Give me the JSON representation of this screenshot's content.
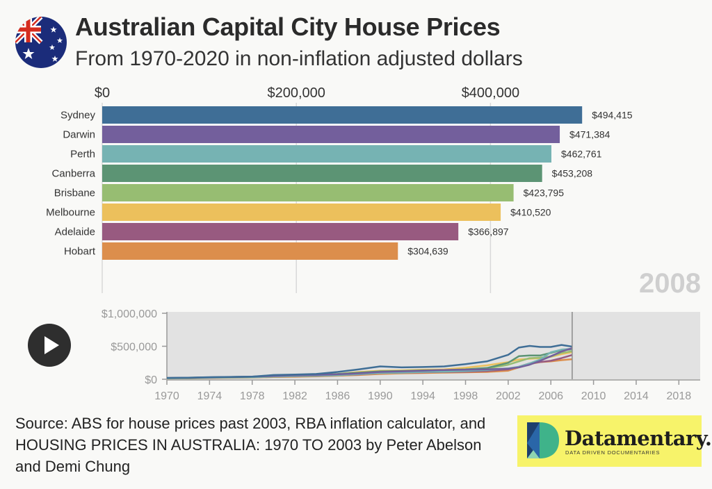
{
  "title": "Australian Capital City House Prices",
  "subtitle": "From 1970-2020 in non-inflation adjusted dollars",
  "current_year": "2008",
  "source": "Source: ABS for house prices past 2003, RBA inflation calculator, and HOUSING PRICES IN AUSTRALIA: 1970 TO 2003 by Peter Abelson and Demi Chung",
  "logo": {
    "name": "Datamentary.",
    "tagline": "DATA DRIVEN DOCUMENTARIES"
  },
  "icons": {
    "flag": "australian-flag-icon",
    "play": "play-icon"
  },
  "chart_data": [
    {
      "type": "bar",
      "orientation": "horizontal",
      "categories": [
        "Sydney",
        "Darwin",
        "Perth",
        "Canberra",
        "Brisbane",
        "Melbourne",
        "Adelaide",
        "Hobart"
      ],
      "values": [
        494415,
        471384,
        462761,
        453208,
        423795,
        410520,
        366897,
        304639
      ],
      "value_labels": [
        "$494,415",
        "$471,384",
        "$462,761",
        "$453,208",
        "$423,795",
        "$410,520",
        "$366,897",
        "$304,639"
      ],
      "colors": [
        "#3f6e96",
        "#735f9c",
        "#76b3b3",
        "#5c9474",
        "#97bd72",
        "#ecc05c",
        "#985a80",
        "#dc8e4c"
      ],
      "xlim": [
        0,
        500000
      ],
      "xticks": [
        0,
        200000,
        400000
      ],
      "xtick_labels": [
        "$0",
        "$200,000",
        "$400,000"
      ],
      "axis_position": "top"
    },
    {
      "type": "line",
      "x": [
        1970,
        1972,
        1974,
        1976,
        1978,
        1980,
        1982,
        1984,
        1986,
        1988,
        1990,
        1992,
        1994,
        1996,
        1998,
        2000,
        2002,
        2003,
        2004,
        2005,
        2006,
        2007,
        2008
      ],
      "series": [
        {
          "key": "Sydney",
          "color": "#3f6e96",
          "values": [
            20000,
            24000,
            32000,
            36000,
            40000,
            64000,
            72000,
            80000,
            110000,
            150000,
            195000,
            180000,
            185000,
            195000,
            230000,
            270000,
            370000,
            480000,
            505000,
            490000,
            490000,
            520000,
            494415
          ]
        },
        {
          "key": "Darwin",
          "color": "#735f9c",
          "values": [
            20000,
            22000,
            28000,
            34000,
            40000,
            50000,
            60000,
            66000,
            75000,
            90000,
            110000,
            120000,
            130000,
            140000,
            145000,
            150000,
            160000,
            180000,
            220000,
            280000,
            350000,
            420000,
            471384
          ]
        },
        {
          "key": "Perth",
          "color": "#76b3b3",
          "values": [
            16000,
            18000,
            24000,
            28000,
            32000,
            42000,
            50000,
            56000,
            62000,
            78000,
            95000,
            100000,
            110000,
            115000,
            125000,
            140000,
            165000,
            190000,
            240000,
            300000,
            410000,
            450000,
            462761
          ]
        },
        {
          "key": "Canberra",
          "color": "#5c9474",
          "values": [
            20000,
            23000,
            30000,
            34000,
            40000,
            52000,
            60000,
            68000,
            80000,
            100000,
            120000,
            125000,
            135000,
            140000,
            150000,
            170000,
            250000,
            350000,
            360000,
            360000,
            400000,
            440000,
            453208
          ]
        },
        {
          "key": "Brisbane",
          "color": "#97bd72",
          "values": [
            14000,
            16000,
            22000,
            26000,
            30000,
            40000,
            48000,
            54000,
            60000,
            80000,
            110000,
            120000,
            125000,
            130000,
            135000,
            160000,
            220000,
            270000,
            320000,
            330000,
            345000,
            400000,
            423795
          ]
        },
        {
          "key": "Melbourne",
          "color": "#ecc05c",
          "values": [
            15000,
            18000,
            24000,
            28000,
            34000,
            46000,
            56000,
            64000,
            80000,
            110000,
            130000,
            135000,
            145000,
            150000,
            175000,
            210000,
            260000,
            300000,
            310000,
            320000,
            340000,
            380000,
            410520
          ]
        },
        {
          "key": "Adelaide",
          "color": "#985a80",
          "values": [
            14000,
            16000,
            22000,
            26000,
            30000,
            40000,
            46000,
            52000,
            60000,
            74000,
            95000,
            100000,
            105000,
            110000,
            115000,
            125000,
            150000,
            190000,
            240000,
            260000,
            280000,
            320000,
            366897
          ]
        },
        {
          "key": "Hobart",
          "color": "#dc8e4c",
          "values": [
            12000,
            14000,
            18000,
            22000,
            26000,
            34000,
            38000,
            44000,
            54000,
            64000,
            80000,
            90000,
            95000,
            100000,
            105000,
            110000,
            130000,
            180000,
            230000,
            260000,
            270000,
            290000,
            304639
          ]
        }
      ],
      "xlim": [
        1970,
        2020
      ],
      "ylim": [
        0,
        1000000
      ],
      "xticks": [
        1970,
        1974,
        1978,
        1982,
        1986,
        1990,
        1994,
        1998,
        2002,
        2006,
        2010,
        2014,
        2018
      ],
      "xtick_labels": [
        "1970",
        "1974",
        "1978",
        "1982",
        "1986",
        "1990",
        "1994",
        "1998",
        "2002",
        "2006",
        "2010",
        "2014",
        "2018"
      ],
      "yticks": [
        0,
        500000,
        1000000
      ],
      "ytick_labels": [
        "$0",
        "$500,000",
        "$1,000,000"
      ],
      "marker_year": 2008
    }
  ]
}
